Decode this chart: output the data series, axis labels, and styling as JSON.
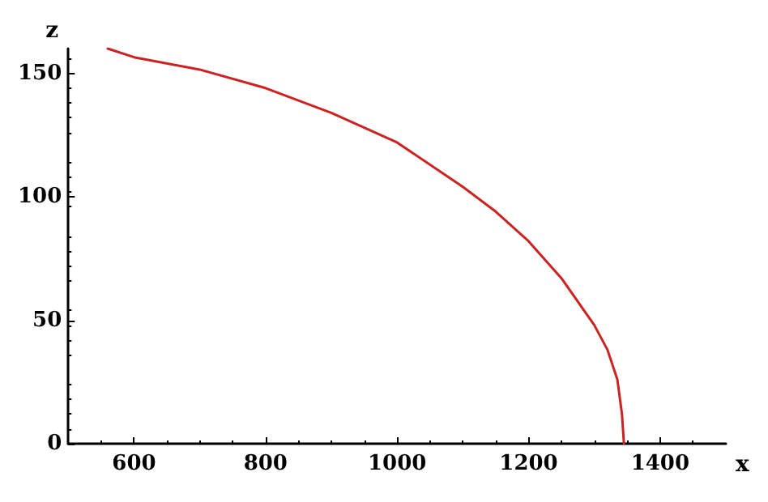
{
  "chart_data": {
    "type": "line",
    "xlabel": "x",
    "ylabel": "z",
    "x": [
      560,
      600,
      700,
      800,
      900,
      1000,
      1100,
      1150,
      1200,
      1250,
      1300,
      1320,
      1335,
      1342,
      1345
    ],
    "series": [
      {
        "color": "#cc2222",
        "values": [
          160,
          156.5,
          151.5,
          144,
          134,
          122,
          104,
          94,
          82,
          67,
          48,
          38,
          26,
          12,
          0
        ]
      }
    ],
    "xlim": [
      500,
      1500
    ],
    "xticks": [
      600,
      800,
      1000,
      1200,
      1400
    ],
    "ylim": [
      0,
      160
    ],
    "yticks": [
      0,
      50,
      100,
      150
    ],
    "grid": false,
    "marker": "none",
    "line_style": "solid"
  }
}
